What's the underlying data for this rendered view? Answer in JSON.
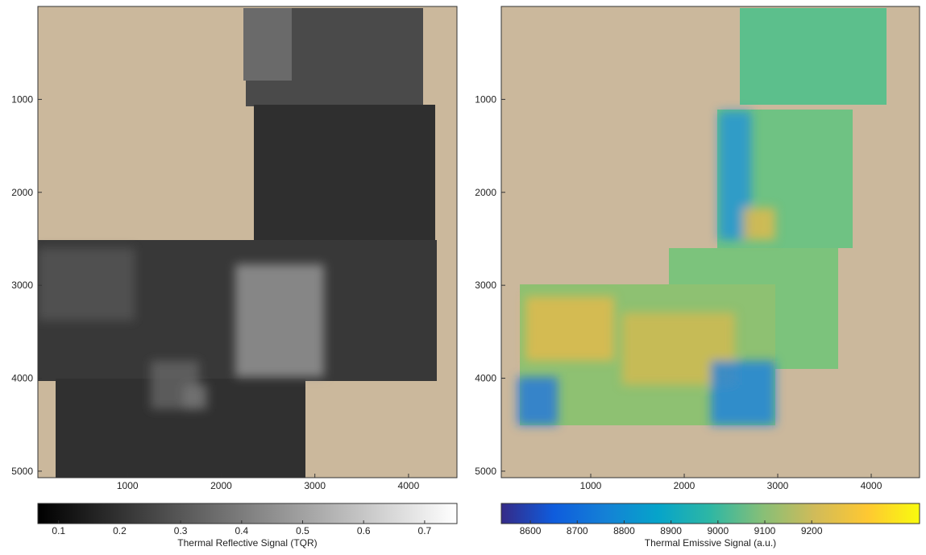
{
  "chart_data": [
    {
      "type": "image",
      "xlim": [
        43,
        4517
      ],
      "ylim": [
        5070,
        0
      ],
      "xticks": [
        1000,
        2000,
        3000,
        4000
      ],
      "yticks": [
        1000,
        2000,
        3000,
        4000,
        5000
      ],
      "colorbar": {
        "label": "Thermal Reflective Signal (TQR)",
        "lim": [
          0.066,
          0.753
        ],
        "ticks": [
          0.1,
          0.2,
          0.3,
          0.4,
          0.5,
          0.6,
          0.7
        ],
        "colors": [
          "#000000",
          "#ffffff"
        ]
      }
    },
    {
      "type": "image",
      "xlim": [
        43,
        4517
      ],
      "ylim": [
        5070,
        0
      ],
      "xticks": [
        1000,
        2000,
        3000,
        4000
      ],
      "yticks": [
        1000,
        2000,
        3000,
        4000,
        5000
      ],
      "colorbar": {
        "label": "Thermal Emissive Signal (a.u.)",
        "lim": [
          8538,
          9430
        ],
        "ticks": [
          8600,
          8700,
          8800,
          8900,
          9000,
          9100,
          9200
        ],
        "colors": [
          "#352a87",
          "#0f5cdd",
          "#1481d6",
          "#06a4ca",
          "#2eb7a4",
          "#87bf77",
          "#d1bb59",
          "#fec832",
          "#f9fb0e"
        ]
      }
    }
  ]
}
